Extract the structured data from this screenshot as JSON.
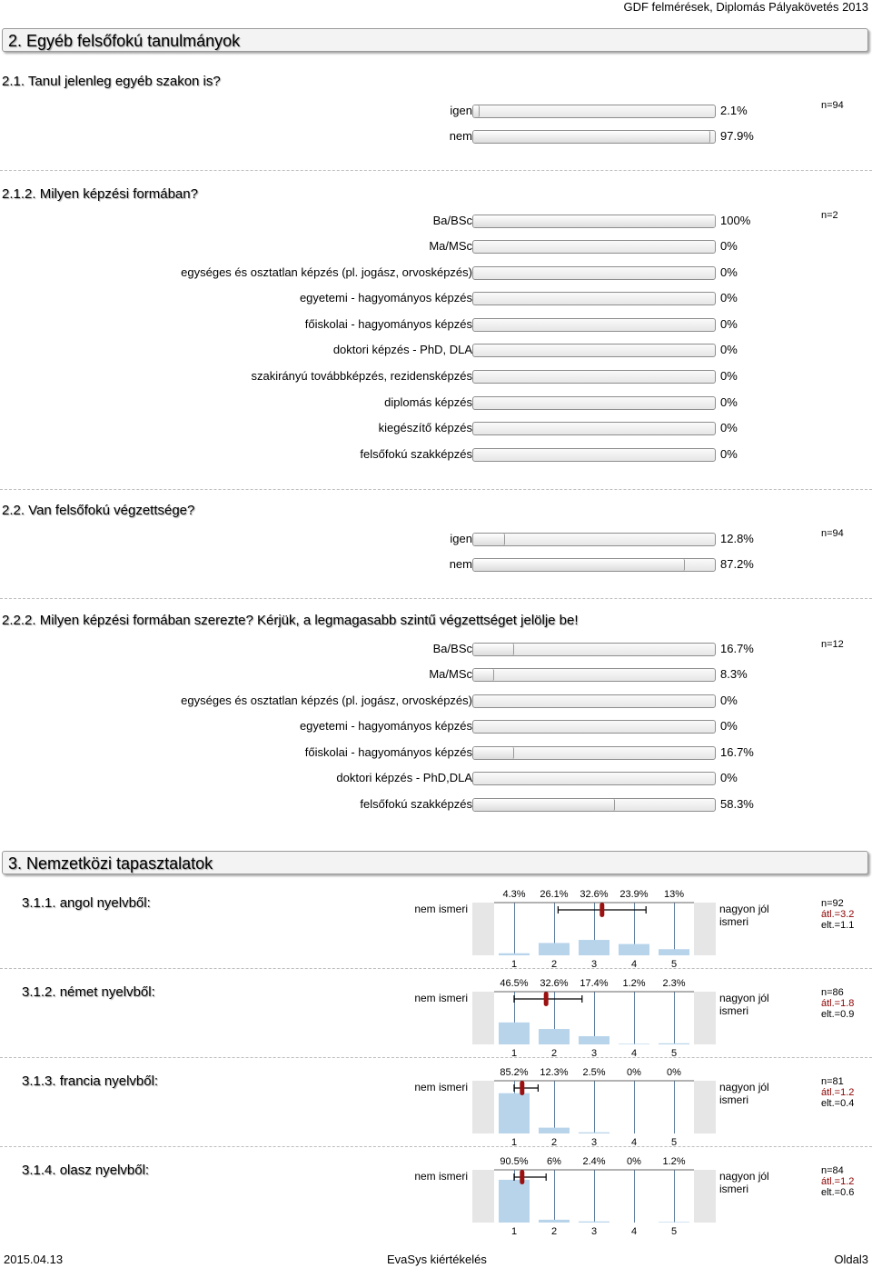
{
  "header": {
    "text": "GDF felmérések, Diplomás Pályakövetés 2013"
  },
  "section2": {
    "title": "2. Egyéb felsőfokú tanulmányok"
  },
  "q211": {
    "title": "2.1. Tanul jelenleg egyéb szakon is?",
    "n": "n=94",
    "items": [
      {
        "label": "igen",
        "pct": "2.1%",
        "value": 2.1
      },
      {
        "label": "nem",
        "pct": "97.9%",
        "value": 97.9
      }
    ]
  },
  "q212": {
    "title": "2.1.2. Milyen képzési formában?",
    "n": "n=2",
    "items": [
      {
        "label": "Ba/BSc",
        "pct": "100%",
        "value": 100
      },
      {
        "label": "Ma/MSc",
        "pct": "0%",
        "value": 0
      },
      {
        "label": "egységes és osztatlan képzés (pl. jogász, orvosképzés)",
        "pct": "0%",
        "value": 0
      },
      {
        "label": "egyetemi - hagyományos képzés",
        "pct": "0%",
        "value": 0
      },
      {
        "label": "főiskolai - hagyományos képzés",
        "pct": "0%",
        "value": 0
      },
      {
        "label": "doktori képzés - PhD, DLA",
        "pct": "0%",
        "value": 0
      },
      {
        "label": "szakirányú továbbképzés, rezidensképzés",
        "pct": "0%",
        "value": 0
      },
      {
        "label": "diplomás képzés",
        "pct": "0%",
        "value": 0
      },
      {
        "label": "kiegészítő képzés",
        "pct": "0%",
        "value": 0
      },
      {
        "label": "felsőfokú szakképzés",
        "pct": "0%",
        "value": 0
      }
    ]
  },
  "q22": {
    "title": "2.2. Van felsőfokú végzettsége?",
    "n": "n=94",
    "items": [
      {
        "label": "igen",
        "pct": "12.8%",
        "value": 12.8
      },
      {
        "label": "nem",
        "pct": "87.2%",
        "value": 87.2
      }
    ]
  },
  "q222": {
    "title": "2.2.2. Milyen képzési formában szerezte? Kérjük, a legmagasabb szintű végzettséget jelölje be!",
    "n": "n=12",
    "items": [
      {
        "label": "Ba/BSc",
        "pct": "16.7%",
        "value": 16.7
      },
      {
        "label": "Ma/MSc",
        "pct": "8.3%",
        "value": 8.3
      },
      {
        "label": "egységes és osztatlan képzés (pl. jogász, orvosképzés)",
        "pct": "0%",
        "value": 0
      },
      {
        "label": "egyetemi - hagyományos képzés",
        "pct": "0%",
        "value": 0
      },
      {
        "label": "főiskolai - hagyományos képzés",
        "pct": "16.7%",
        "value": 16.7
      },
      {
        "label": "doktori képzés - PhD,DLA",
        "pct": "0%",
        "value": 0
      },
      {
        "label": "felsőfokú szakképzés",
        "pct": "58.3%",
        "value": 58.3
      }
    ]
  },
  "section3": {
    "title": "3. Nemzetközi tapasztalatok"
  },
  "lang": {
    "left_label": "nem ismeri",
    "right_label": "nagyon jól ismeri",
    "scale": [
      "1",
      "2",
      "3",
      "4",
      "5"
    ],
    "questions": [
      {
        "title": "3.1.1. angol nyelvből:",
        "pcts": [
          "4.3%",
          "26.1%",
          "32.6%",
          "23.9%",
          "13%"
        ],
        "values": [
          4.3,
          26.1,
          32.6,
          23.9,
          13
        ],
        "n": "n=92",
        "mean_label": "átl.=3.2",
        "sd_label": "elt.=1.1",
        "mean": 3.2,
        "sd": 1.1
      },
      {
        "title": "3.1.2. német nyelvből:",
        "pcts": [
          "46.5%",
          "32.6%",
          "17.4%",
          "1.2%",
          "2.3%"
        ],
        "values": [
          46.5,
          32.6,
          17.4,
          1.2,
          2.3
        ],
        "n": "n=86",
        "mean_label": "átl.=1.8",
        "sd_label": "elt.=0.9",
        "mean": 1.8,
        "sd": 0.9
      },
      {
        "title": "3.1.3. francia nyelvből:",
        "pcts": [
          "85.2%",
          "12.3%",
          "2.5%",
          "0%",
          "0%"
        ],
        "values": [
          85.2,
          12.3,
          2.5,
          0,
          0
        ],
        "n": "n=81",
        "mean_label": "átl.=1.2",
        "sd_label": "elt.=0.4",
        "mean": 1.2,
        "sd": 0.4
      },
      {
        "title": "3.1.4. olasz nyelvből:",
        "pcts": [
          "90.5%",
          "6%",
          "2.4%",
          "0%",
          "1.2%"
        ],
        "values": [
          90.5,
          6,
          2.4,
          0,
          1.2
        ],
        "n": "n=84",
        "mean_label": "átl.=1.2",
        "sd_label": "elt.=0.6",
        "mean": 1.2,
        "sd": 0.6
      }
    ]
  },
  "footer": {
    "date": "2015.04.13",
    "center": "EvaSys kiértékelés",
    "page": "Oldal3"
  },
  "colors": {
    "histogram_bar": "#b8d4ea",
    "mean_marker": "#9b1010",
    "chart_bg": "#e6e6e6"
  }
}
